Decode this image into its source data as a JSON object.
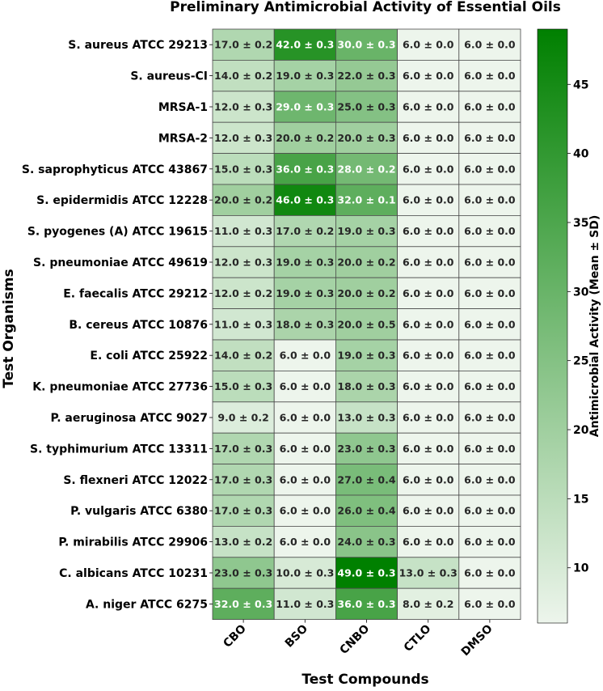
{
  "chart_data": {
    "type": "heatmap",
    "title": "Preliminary Antimicrobial Activity of Essential Oils",
    "xlabel": "Test Compounds",
    "ylabel": "Test Organisms",
    "colorbar_label": "Antimicrobial Activity (Mean ± SD)",
    "colorbar_range": [
      6,
      49
    ],
    "colorbar_ticks": [
      10,
      15,
      20,
      25,
      30,
      35,
      40,
      45
    ],
    "colormap": {
      "low": "#edf5ec",
      "high": "#008000"
    },
    "columns": [
      "CBO",
      "BSO",
      "CNBO",
      "CTLO",
      "DMSO"
    ],
    "rows": [
      "S. aureus ATCC 29213",
      "S. aureus-CI",
      "MRSA-1",
      "MRSA-2",
      "S. saprophyticus ATCC 43867",
      "S. epidermidis ATCC 12228",
      "S. pyogenes (A) ATCC 19615",
      "S. pneumoniae ATCC 49619",
      "E. faecalis ATCC 29212",
      "B. cereus ATCC 10876",
      "E. coli ATCC 25922",
      "K. pneumoniae ATCC 27736",
      "P. aeruginosa ATCC 9027",
      "S. typhimurium ATCC 13311",
      "S. flexneri ATCC 12022",
      "P. vulgaris ATCC 6380",
      "P. mirabilis ATCC 29906",
      "C. albicans ATCC 10231",
      "A. niger ATCC 6275"
    ],
    "means": [
      [
        17,
        42,
        30,
        6,
        6
      ],
      [
        14,
        19,
        22,
        6,
        6
      ],
      [
        12,
        29,
        25,
        6,
        6
      ],
      [
        12,
        20,
        20,
        6,
        6
      ],
      [
        15,
        36,
        28,
        6,
        6
      ],
      [
        20,
        46,
        32,
        6,
        6
      ],
      [
        11,
        17,
        19,
        6,
        6
      ],
      [
        12,
        19,
        20,
        6,
        6
      ],
      [
        12,
        19,
        20,
        6,
        6
      ],
      [
        11,
        18,
        20,
        6,
        6
      ],
      [
        14,
        6,
        19,
        6,
        6
      ],
      [
        15,
        6,
        18,
        6,
        6
      ],
      [
        9,
        6,
        13,
        6,
        6
      ],
      [
        17,
        6,
        23,
        6,
        6
      ],
      [
        17,
        6,
        27,
        6,
        6
      ],
      [
        17,
        6,
        26,
        6,
        6
      ],
      [
        13,
        6,
        24,
        6,
        6
      ],
      [
        23,
        10,
        49,
        13,
        6
      ],
      [
        32,
        11,
        36,
        8,
        6
      ]
    ],
    "labels": [
      [
        "17.0 ± 0.2",
        "42.0 ± 0.3",
        "30.0 ± 0.3",
        "6.0 ± 0.0",
        "6.0 ± 0.0"
      ],
      [
        "14.0 ± 0.2",
        "19.0 ± 0.3",
        "22.0 ± 0.3",
        "6.0 ± 0.0",
        "6.0 ± 0.0"
      ],
      [
        "12.0 ± 0.3",
        "29.0 ± 0.3",
        "25.0 ± 0.3",
        "6.0 ± 0.0",
        "6.0 ± 0.0"
      ],
      [
        "12.0 ± 0.3",
        "20.0 ± 0.2",
        "20.0 ± 0.3",
        "6.0 ± 0.0",
        "6.0 ± 0.0"
      ],
      [
        "15.0 ± 0.3",
        "36.0 ± 0.3",
        "28.0 ± 0.2",
        "6.0 ± 0.0",
        "6.0 ± 0.0"
      ],
      [
        "20.0 ± 0.2",
        "46.0 ± 0.3",
        "32.0 ± 0.1",
        "6.0 ± 0.0",
        "6.0 ± 0.0"
      ],
      [
        "11.0 ± 0.3",
        "17.0 ± 0.2",
        "19.0 ± 0.3",
        "6.0 ± 0.0",
        "6.0 ± 0.0"
      ],
      [
        "12.0 ± 0.3",
        "19.0 ± 0.3",
        "20.0 ± 0.2",
        "6.0 ± 0.0",
        "6.0 ± 0.0"
      ],
      [
        "12.0 ± 0.2",
        "19.0 ± 0.3",
        "20.0 ± 0.2",
        "6.0 ± 0.0",
        "6.0 ± 0.0"
      ],
      [
        "11.0 ± 0.3",
        "18.0 ± 0.3",
        "20.0 ± 0.5",
        "6.0 ± 0.0",
        "6.0 ± 0.0"
      ],
      [
        "14.0 ± 0.2",
        "6.0 ± 0.0",
        "19.0 ± 0.3",
        "6.0 ± 0.0",
        "6.0 ± 0.0"
      ],
      [
        "15.0 ± 0.3",
        "6.0 ± 0.0",
        "18.0 ± 0.3",
        "6.0 ± 0.0",
        "6.0 ± 0.0"
      ],
      [
        "9.0 ± 0.2",
        "6.0 ± 0.0",
        "13.0 ± 0.3",
        "6.0 ± 0.0",
        "6.0 ± 0.0"
      ],
      [
        "17.0 ± 0.3",
        "6.0 ± 0.0",
        "23.0 ± 0.3",
        "6.0 ± 0.0",
        "6.0 ± 0.0"
      ],
      [
        "17.0 ± 0.3",
        "6.0 ± 0.0",
        "27.0 ± 0.4",
        "6.0 ± 0.0",
        "6.0 ± 0.0"
      ],
      [
        "17.0 ± 0.3",
        "6.0 ± 0.0",
        "26.0 ± 0.4",
        "6.0 ± 0.0",
        "6.0 ± 0.0"
      ],
      [
        "13.0 ± 0.2",
        "6.0 ± 0.0",
        "24.0 ± 0.3",
        "6.0 ± 0.0",
        "6.0 ± 0.0"
      ],
      [
        "23.0 ± 0.3",
        "10.0 ± 0.3",
        "49.0 ± 0.3",
        "13.0 ± 0.3",
        "6.0 ± 0.0"
      ],
      [
        "32.0 ± 0.3",
        "11.0 ± 0.3",
        "36.0 ± 0.3",
        "8.0 ± 0.2",
        "6.0 ± 0.0"
      ]
    ]
  }
}
